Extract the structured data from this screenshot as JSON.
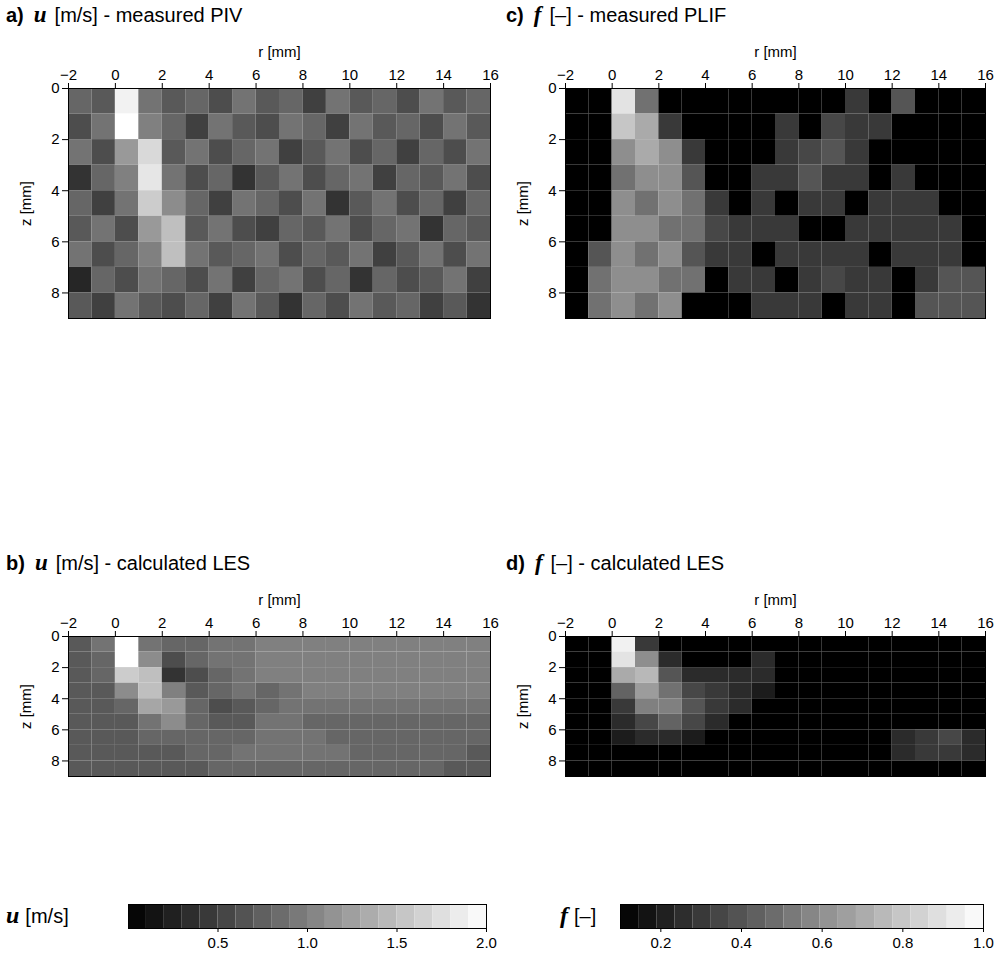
{
  "chart_data": [
    {
      "type": "heatmap",
      "letter": "a)",
      "symbol": "u",
      "title": "[m/s] - measured PIV",
      "x_label": "r [mm]",
      "y_label": "z [mm]",
      "xlim": [
        -2,
        16
      ],
      "ylim": [
        0,
        9
      ],
      "xticks": [
        -2,
        0,
        2,
        4,
        6,
        8,
        10,
        12,
        14,
        16
      ],
      "yticks": [
        0,
        2,
        4,
        6,
        8
      ],
      "x_edges": [
        -2,
        -1,
        0,
        1,
        2,
        3,
        4,
        5,
        6,
        7,
        8,
        9,
        10,
        11,
        12,
        13,
        14,
        15,
        16
      ],
      "y_edges": [
        0,
        1,
        2,
        3,
        4,
        5,
        6,
        7,
        8,
        9
      ],
      "cells": [
        [
          0.8,
          0.7,
          1.9,
          0.9,
          0.7,
          0.8,
          0.6,
          0.9,
          0.7,
          0.8,
          0.5,
          0.9,
          0.7,
          0.8,
          0.6,
          0.9,
          0.7,
          0.8
        ],
        [
          0.6,
          0.9,
          2.0,
          1.0,
          0.8,
          0.5,
          0.9,
          0.7,
          0.6,
          0.9,
          0.8,
          0.5,
          0.9,
          0.7,
          0.8,
          0.6,
          0.9,
          0.7
        ],
        [
          0.9,
          0.6,
          1.2,
          1.7,
          0.7,
          0.9,
          0.6,
          0.8,
          0.9,
          0.5,
          0.7,
          0.9,
          0.6,
          0.8,
          0.5,
          0.8,
          0.6,
          0.9
        ],
        [
          0.4,
          0.8,
          1.0,
          1.8,
          0.9,
          0.6,
          0.8,
          0.4,
          0.7,
          0.9,
          0.6,
          0.8,
          0.9,
          0.5,
          0.8,
          0.7,
          0.9,
          0.6
        ],
        [
          0.8,
          0.5,
          0.9,
          1.6,
          1.1,
          0.8,
          0.5,
          0.9,
          0.8,
          0.6,
          0.9,
          0.4,
          0.7,
          0.9,
          0.6,
          0.8,
          0.5,
          0.8
        ],
        [
          0.7,
          0.9,
          0.6,
          1.2,
          1.5,
          0.7,
          0.9,
          0.6,
          0.5,
          0.8,
          0.7,
          0.9,
          0.6,
          0.8,
          0.9,
          0.4,
          0.8,
          0.7
        ],
        [
          0.9,
          0.6,
          0.8,
          1.0,
          1.5,
          0.9,
          0.7,
          0.8,
          0.9,
          0.6,
          0.8,
          0.7,
          0.9,
          0.5,
          0.7,
          0.9,
          0.6,
          0.9
        ],
        [
          0.3,
          0.8,
          0.6,
          0.9,
          0.8,
          0.6,
          0.9,
          0.5,
          0.8,
          0.9,
          0.6,
          0.8,
          0.4,
          0.8,
          0.6,
          0.7,
          0.9,
          0.5
        ],
        [
          0.7,
          0.5,
          0.9,
          0.7,
          0.6,
          0.8,
          0.5,
          0.9,
          0.7,
          0.4,
          0.8,
          0.6,
          0.9,
          0.7,
          0.8,
          0.5,
          0.7,
          0.4
        ]
      ]
    },
    {
      "type": "heatmap",
      "letter": "b)",
      "symbol": "u",
      "title": "[m/s] - calculated LES",
      "x_label": "r [mm]",
      "y_label": "z [mm]",
      "xlim": [
        -2,
        16
      ],
      "ylim": [
        0,
        9
      ],
      "xticks": [
        -2,
        0,
        2,
        4,
        6,
        8,
        10,
        12,
        14,
        16
      ],
      "yticks": [
        0,
        2,
        4,
        6,
        8
      ],
      "x_edges": [
        -2,
        -1,
        0,
        1,
        2,
        3,
        4,
        5,
        6,
        7,
        8,
        9,
        10,
        11,
        12,
        13,
        14,
        15,
        16
      ],
      "y_edges": [
        0,
        1,
        2,
        3,
        4,
        5,
        6,
        7,
        8,
        9
      ],
      "cells": [
        [
          0.7,
          0.9,
          2.0,
          0.9,
          0.8,
          0.8,
          0.9,
          0.9,
          1.0,
          1.0,
          1.0,
          1.0,
          1.0,
          1.0,
          1.0,
          1.0,
          1.0,
          1.0
        ],
        [
          0.7,
          0.8,
          2.0,
          1.1,
          0.6,
          0.8,
          0.9,
          0.9,
          1.0,
          1.0,
          1.0,
          1.0,
          1.0,
          1.0,
          1.0,
          1.0,
          1.0,
          1.0
        ],
        [
          0.7,
          0.8,
          1.6,
          1.5,
          0.4,
          0.6,
          0.8,
          0.9,
          1.0,
          1.0,
          1.0,
          1.0,
          1.0,
          1.0,
          1.0,
          1.0,
          1.0,
          1.0
        ],
        [
          0.7,
          0.7,
          1.1,
          1.5,
          1.0,
          0.7,
          0.8,
          0.9,
          0.8,
          0.9,
          1.0,
          1.0,
          1.0,
          1.0,
          1.0,
          1.0,
          1.0,
          1.0
        ],
        [
          0.7,
          0.7,
          0.8,
          1.3,
          1.2,
          0.8,
          0.6,
          0.7,
          0.8,
          0.9,
          0.9,
          0.9,
          0.9,
          0.9,
          0.9,
          0.9,
          0.9,
          0.9
        ],
        [
          0.7,
          0.7,
          0.7,
          0.9,
          1.1,
          0.8,
          0.7,
          0.7,
          0.9,
          0.9,
          0.8,
          0.8,
          0.8,
          0.8,
          0.8,
          0.8,
          0.8,
          0.8
        ],
        [
          0.7,
          0.7,
          0.7,
          0.8,
          0.8,
          0.8,
          0.8,
          0.8,
          0.9,
          0.9,
          0.9,
          0.8,
          0.8,
          0.8,
          0.8,
          0.8,
          0.8,
          0.8
        ],
        [
          0.7,
          0.7,
          0.7,
          0.7,
          0.7,
          0.8,
          0.8,
          0.9,
          0.9,
          0.9,
          0.9,
          0.9,
          0.8,
          0.8,
          0.8,
          0.8,
          0.8,
          0.7
        ],
        [
          0.7,
          0.7,
          0.7,
          0.7,
          0.7,
          0.7,
          0.8,
          0.8,
          0.8,
          0.8,
          0.8,
          0.8,
          0.8,
          0.8,
          0.8,
          0.8,
          0.7,
          0.7
        ]
      ]
    },
    {
      "type": "heatmap",
      "letter": "c)",
      "symbol": "f",
      "title": "[–] - measured PLIF",
      "x_label": "r [mm]",
      "y_label": "z [mm]",
      "xlim": [
        -2,
        16
      ],
      "ylim": [
        0,
        9
      ],
      "xticks": [
        -2,
        0,
        2,
        4,
        6,
        8,
        10,
        12,
        14,
        16
      ],
      "yticks": [
        0,
        2,
        4,
        6,
        8
      ],
      "x_edges": [
        -2,
        -1,
        0,
        1,
        2,
        3,
        4,
        5,
        6,
        7,
        8,
        9,
        10,
        11,
        12,
        13,
        14,
        15,
        16
      ],
      "y_edges": [
        0,
        1,
        2,
        3,
        4,
        5,
        6,
        7,
        8,
        9
      ],
      "cells": [
        [
          0.1,
          0.1,
          0.9,
          0.5,
          0.1,
          0.1,
          0.1,
          0.1,
          0.1,
          0.1,
          0.1,
          0.1,
          0.3,
          0.1,
          0.4,
          0.1,
          0.1,
          0.1
        ],
        [
          0.1,
          0.1,
          0.8,
          0.7,
          0.3,
          0.1,
          0.1,
          0.1,
          0.1,
          0.3,
          0.1,
          0.35,
          0.3,
          0.3,
          0.1,
          0.1,
          0.1,
          0.1
        ],
        [
          0.1,
          0.1,
          0.6,
          0.7,
          0.6,
          0.3,
          0.1,
          0.1,
          0.1,
          0.3,
          0.35,
          0.4,
          0.3,
          0.1,
          0.1,
          0.1,
          0.1,
          0.1
        ],
        [
          0.1,
          0.1,
          0.5,
          0.6,
          0.6,
          0.4,
          0.1,
          0.1,
          0.3,
          0.3,
          0.4,
          0.3,
          0.3,
          0.1,
          0.3,
          0.1,
          0.1,
          0.1
        ],
        [
          0.1,
          0.1,
          0.6,
          0.5,
          0.6,
          0.5,
          0.3,
          0.1,
          0.3,
          0.1,
          0.3,
          0.3,
          0.1,
          0.3,
          0.3,
          0.3,
          0.1,
          0.1
        ],
        [
          0.1,
          0.1,
          0.6,
          0.6,
          0.5,
          0.5,
          0.35,
          0.3,
          0.3,
          0.3,
          0.1,
          0.1,
          0.3,
          0.3,
          0.3,
          0.3,
          0.3,
          0.1
        ],
        [
          0.1,
          0.4,
          0.6,
          0.5,
          0.6,
          0.4,
          0.3,
          0.3,
          0.1,
          0.3,
          0.3,
          0.3,
          0.3,
          0.1,
          0.3,
          0.3,
          0.3,
          0.1
        ],
        [
          0.1,
          0.5,
          0.6,
          0.6,
          0.5,
          0.5,
          0.1,
          0.3,
          0.3,
          0.1,
          0.3,
          0.35,
          0.3,
          0.3,
          0.1,
          0.3,
          0.4,
          0.4
        ],
        [
          0.1,
          0.5,
          0.6,
          0.5,
          0.6,
          0.1,
          0.1,
          0.1,
          0.3,
          0.3,
          0.3,
          0.1,
          0.3,
          0.3,
          0.1,
          0.4,
          0.4,
          0.4
        ]
      ]
    },
    {
      "type": "heatmap",
      "letter": "d)",
      "symbol": "f",
      "title": "[–] - calculated LES",
      "x_label": "r [mm]",
      "y_label": "z [mm]",
      "xlim": [
        -2,
        16
      ],
      "ylim": [
        0,
        9
      ],
      "xticks": [
        -2,
        0,
        2,
        4,
        6,
        8,
        10,
        12,
        14,
        16
      ],
      "yticks": [
        0,
        2,
        4,
        6,
        8
      ],
      "x_edges": [
        -2,
        -1,
        0,
        1,
        2,
        3,
        4,
        5,
        6,
        7,
        8,
        9,
        10,
        11,
        12,
        13,
        14,
        15,
        16
      ],
      "y_edges": [
        0,
        1,
        2,
        3,
        4,
        5,
        6,
        7,
        8,
        9
      ],
      "cells": [
        [
          0.1,
          0.1,
          0.95,
          0.3,
          0.1,
          0.1,
          0.1,
          0.1,
          0.1,
          0.1,
          0.1,
          0.1,
          0.1,
          0.1,
          0.1,
          0.1,
          0.1,
          0.1
        ],
        [
          0.1,
          0.1,
          0.9,
          0.6,
          0.25,
          0.1,
          0.1,
          0.1,
          0.25,
          0.1,
          0.1,
          0.1,
          0.1,
          0.1,
          0.1,
          0.1,
          0.1,
          0.1
        ],
        [
          0.1,
          0.1,
          0.7,
          0.75,
          0.4,
          0.25,
          0.25,
          0.25,
          0.25,
          0.1,
          0.1,
          0.1,
          0.1,
          0.1,
          0.1,
          0.1,
          0.1,
          0.1
        ],
        [
          0.1,
          0.1,
          0.45,
          0.65,
          0.5,
          0.35,
          0.3,
          0.25,
          0.2,
          0.1,
          0.1,
          0.1,
          0.1,
          0.1,
          0.1,
          0.1,
          0.1,
          0.1
        ],
        [
          0.1,
          0.1,
          0.3,
          0.55,
          0.55,
          0.4,
          0.3,
          0.25,
          0.1,
          0.1,
          0.1,
          0.1,
          0.1,
          0.1,
          0.1,
          0.1,
          0.1,
          0.1
        ],
        [
          0.1,
          0.1,
          0.25,
          0.35,
          0.45,
          0.35,
          0.25,
          0.1,
          0.1,
          0.1,
          0.1,
          0.1,
          0.1,
          0.1,
          0.1,
          0.1,
          0.1,
          0.1
        ],
        [
          0.1,
          0.1,
          0.2,
          0.25,
          0.25,
          0.2,
          0.1,
          0.1,
          0.1,
          0.1,
          0.1,
          0.1,
          0.1,
          0.1,
          0.25,
          0.3,
          0.35,
          0.25
        ],
        [
          0.1,
          0.1,
          0.1,
          0.1,
          0.1,
          0.1,
          0.1,
          0.1,
          0.1,
          0.1,
          0.1,
          0.1,
          0.1,
          0.1,
          0.25,
          0.3,
          0.3,
          0.25
        ],
        [
          0.1,
          0.1,
          0.1,
          0.1,
          0.1,
          0.1,
          0.1,
          0.1,
          0.1,
          0.1,
          0.1,
          0.1,
          0.1,
          0.1,
          0.1,
          0.1,
          0.1,
          0.1
        ]
      ]
    }
  ],
  "colorbars": [
    {
      "symbol": "u",
      "label": "[m/s]",
      "range": [
        0,
        2
      ],
      "ticks": [
        0.5,
        1,
        1.5,
        2
      ]
    },
    {
      "symbol": "f",
      "label": "[–]",
      "range": [
        0.1,
        1
      ],
      "ticks": [
        0.2,
        0.4,
        0.6,
        0.8,
        1
      ]
    }
  ]
}
